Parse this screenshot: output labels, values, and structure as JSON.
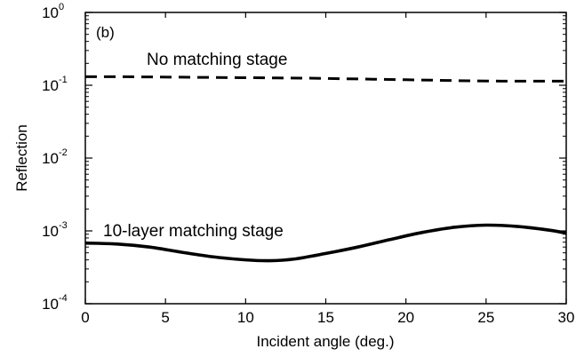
{
  "chart_data": {
    "type": "line",
    "panel_label": "(b)",
    "xlabel": "Incident angle (deg.)",
    "ylabel": "Reflection",
    "xlim": [
      0,
      30
    ],
    "ylim": [
      0.0001,
      1
    ],
    "yscale": "log",
    "grid": false,
    "x_ticks": [
      {
        "value": 0,
        "label": "0"
      },
      {
        "value": 5,
        "label": "5"
      },
      {
        "value": 10,
        "label": "10"
      },
      {
        "value": 15,
        "label": "15"
      },
      {
        "value": 20,
        "label": "20"
      },
      {
        "value": 25,
        "label": "25"
      },
      {
        "value": 30,
        "label": "30"
      }
    ],
    "y_ticks": [
      {
        "value": 1,
        "base": "10",
        "exp": "0"
      },
      {
        "value": 0.1,
        "base": "10",
        "exp": "-1"
      },
      {
        "value": 0.01,
        "base": "10",
        "exp": "-2"
      },
      {
        "value": 0.001,
        "base": "10",
        "exp": "-3"
      },
      {
        "value": 0.0001,
        "base": "10",
        "exp": "-4"
      }
    ],
    "series": [
      {
        "annotation": "No matching stage",
        "line_style": "dashed",
        "x": [
          0,
          2,
          4,
          6,
          8,
          10,
          12,
          14,
          16,
          18,
          20,
          22,
          24,
          26,
          28,
          30
        ],
        "y": [
          0.131,
          0.131,
          0.13,
          0.129,
          0.128,
          0.127,
          0.126,
          0.125,
          0.123,
          0.121,
          0.119,
          0.117,
          0.115,
          0.114,
          0.114,
          0.114
        ]
      },
      {
        "annotation": "10-layer matching stage",
        "line_style": "solid",
        "x": [
          0,
          2,
          4,
          6,
          8,
          10,
          11.5,
          13,
          15,
          17,
          19,
          21,
          23,
          25,
          27,
          29,
          30
        ],
        "y": [
          0.00068,
          0.00066,
          0.0006,
          0.00051,
          0.00044,
          0.0004,
          0.00039,
          0.00041,
          0.00049,
          0.0006,
          0.00076,
          0.00095,
          0.00112,
          0.0012,
          0.00115,
          0.00102,
          0.00093
        ]
      }
    ]
  }
}
